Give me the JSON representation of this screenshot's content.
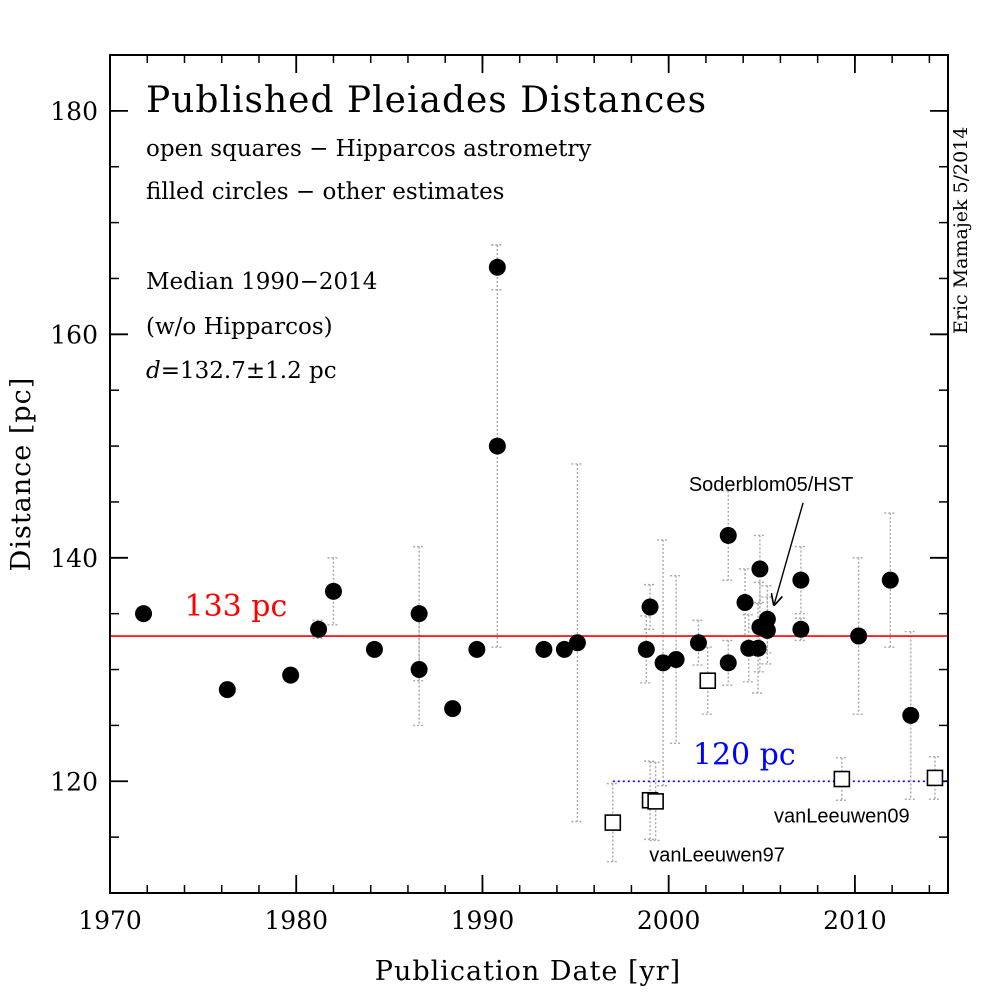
{
  "chart_data": {
    "type": "scatter",
    "title": "Published Pleiades Distances",
    "legend_lines": [
      "open squares − Hipparcos astrometry",
      "filled circles − other estimates"
    ],
    "median_lines": [
      "Median 1990−2014",
      "(w/o Hipparcos)"
    ],
    "median_value": {
      "symbol": "d",
      "text": "=132.7±1.2 pc"
    },
    "credit": "Eric Mamajek 5/2014",
    "xlabel": "Publication Date [yr]",
    "ylabel": "Distance [pc]",
    "xlim": [
      1970,
      2015
    ],
    "ylim": [
      110,
      185
    ],
    "x_ticks": [
      1970,
      1980,
      1990,
      2000,
      2010
    ],
    "y_ticks": [
      120,
      140,
      160,
      180
    ],
    "reference_lines": [
      {
        "label": "133 pc",
        "value": 133,
        "color": "#ff0000",
        "style": "solid",
        "x_start": 1970,
        "x_end": 2015,
        "label_x": 1974,
        "label_y": 134.8
      },
      {
        "label": "120 pc",
        "value": 120,
        "color": "#0000ff",
        "style": "dotted",
        "x_start": 1997,
        "x_end": 2015,
        "label_x": 2001.3,
        "label_y": 121.5
      }
    ],
    "annotations": [
      {
        "text": "Soderblom05/HST",
        "x": 2005.5,
        "y": 146,
        "anchor": "middle",
        "arrow_to": [
          2005.5,
          135.8
        ]
      },
      {
        "text": "vanLeeuwen09",
        "x": 2009.3,
        "y": 116.3,
        "anchor": "middle"
      },
      {
        "text": "vanLeeuwen97",
        "x": 2002.6,
        "y": 112.8,
        "anchor": "middle"
      }
    ],
    "series": [
      {
        "name": "other estimates",
        "marker": "filled-circle",
        "points": [
          {
            "x": 1971.8,
            "y": 135.0
          },
          {
            "x": 1976.3,
            "y": 128.2
          },
          {
            "x": 1979.7,
            "y": 129.5
          },
          {
            "x": 1981.2,
            "y": 133.6,
            "err": 0.8
          },
          {
            "x": 1982.0,
            "y": 137.0,
            "err": 3.0
          },
          {
            "x": 1984.2,
            "y": 131.8
          },
          {
            "x": 1986.6,
            "y": 135.0,
            "err": 6.0
          },
          {
            "x": 1986.6,
            "y": 130.0,
            "err": 5.0
          },
          {
            "x": 1988.4,
            "y": 126.5
          },
          {
            "x": 1989.7,
            "y": 131.8
          },
          {
            "x": 1990.8,
            "y": 166.0,
            "err": 2.0
          },
          {
            "x": 1990.8,
            "y": 150.0,
            "err": 18.0
          },
          {
            "x": 1993.3,
            "y": 131.8
          },
          {
            "x": 1994.4,
            "y": 131.8
          },
          {
            "x": 1995.1,
            "y": 132.4,
            "err": 16.0
          },
          {
            "x": 1998.8,
            "y": 131.8,
            "err": 3.0
          },
          {
            "x": 1999.0,
            "y": 135.6,
            "err": 2.0
          },
          {
            "x": 1999.7,
            "y": 130.6,
            "err": 11.0
          },
          {
            "x": 2000.4,
            "y": 130.9,
            "err": 7.5
          },
          {
            "x": 2001.6,
            "y": 132.4,
            "err": 2.0
          },
          {
            "x": 2003.2,
            "y": 142.0,
            "err": 4.0
          },
          {
            "x": 2003.2,
            "y": 130.6,
            "err": 2.0
          },
          {
            "x": 2004.1,
            "y": 136.0,
            "err": 3.0
          },
          {
            "x": 2004.3,
            "y": 131.9,
            "err": 3.0
          },
          {
            "x": 2004.8,
            "y": 131.9,
            "err": 4.0
          },
          {
            "x": 2004.9,
            "y": 139.0,
            "err": 3.0
          },
          {
            "x": 2004.9,
            "y": 133.8,
            "err": 4.0
          },
          {
            "x": 2005.3,
            "y": 134.5,
            "err": 3.0
          },
          {
            "x": 2005.3,
            "y": 133.5,
            "err": 3.0
          },
          {
            "x": 2007.1,
            "y": 138.0,
            "err": 3.0
          },
          {
            "x": 2007.1,
            "y": 133.6,
            "err": 1.0
          },
          {
            "x": 2010.2,
            "y": 133.0,
            "err": 7.0
          },
          {
            "x": 2011.9,
            "y": 138.0,
            "err": 6.0
          },
          {
            "x": 2013.0,
            "y": 125.9,
            "err": 7.5
          }
        ]
      },
      {
        "name": "Hipparcos astrometry",
        "marker": "open-square",
        "points": [
          {
            "x": 1997.0,
            "y": 116.3,
            "err": 3.5
          },
          {
            "x": 1999.0,
            "y": 118.3,
            "err": 3.5
          },
          {
            "x": 1999.3,
            "y": 118.2,
            "err": 3.5
          },
          {
            "x": 2002.1,
            "y": 129.0,
            "err": 3.0
          },
          {
            "x": 2009.3,
            "y": 120.2,
            "err": 1.9
          },
          {
            "x": 2014.3,
            "y": 120.3,
            "err": 1.9
          }
        ]
      }
    ]
  }
}
